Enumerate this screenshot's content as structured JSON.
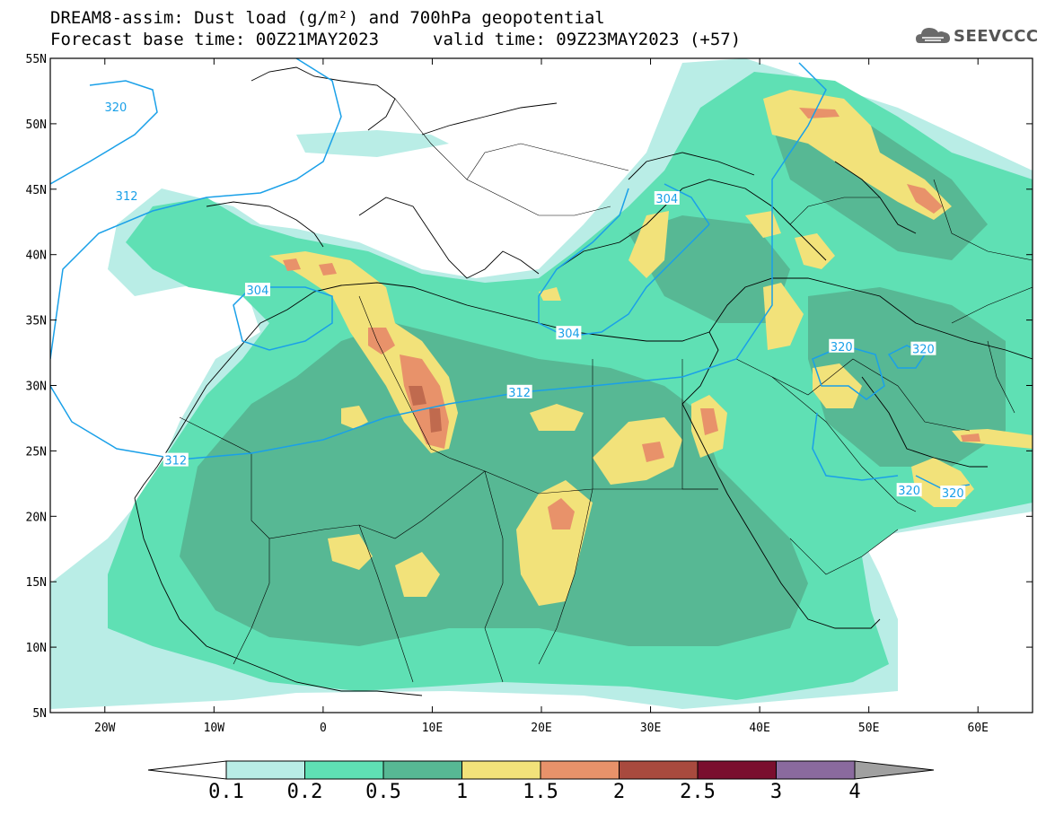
{
  "title": {
    "line1": "DREAM8-assim: Dust load (g/m²) and 700hPa geopotential",
    "line2_left": "Forecast base time: 00Z21MAY2023",
    "line2_right": "valid time: 09Z23MAY2023 (+57)"
  },
  "logo": {
    "icon": "cloud-icon",
    "text": "SEEVCCC"
  },
  "map": {
    "lon_range": [
      -25,
      65
    ],
    "lat_range": [
      5,
      55
    ],
    "lon_ticks": [
      "20W",
      "10W",
      "0",
      "10E",
      "20E",
      "30E",
      "40E",
      "50E",
      "60E"
    ],
    "lat_ticks": [
      "55N",
      "50N",
      "45N",
      "40N",
      "35N",
      "30N",
      "25N",
      "20N",
      "15N",
      "10N",
      "5N"
    ],
    "contour_labels": [
      {
        "text": "320",
        "lon": -19.0,
        "lat": 51.3
      },
      {
        "text": "312",
        "lon": -18.0,
        "lat": 44.5
      },
      {
        "text": "304",
        "lon": -6.0,
        "lat": 37.3
      },
      {
        "text": "304",
        "lon": 31.5,
        "lat": 44.3
      },
      {
        "text": "304",
        "lon": 22.5,
        "lat": 34.0
      },
      {
        "text": "312",
        "lon": 18.0,
        "lat": 29.5
      },
      {
        "text": "312",
        "lon": -13.5,
        "lat": 24.3
      },
      {
        "text": "320",
        "lon": 47.5,
        "lat": 33.0
      },
      {
        "text": "320",
        "lon": 55.0,
        "lat": 32.8
      },
      {
        "text": "320",
        "lon": 53.7,
        "lat": 22.0
      },
      {
        "text": "320",
        "lon": 57.7,
        "lat": 21.8
      }
    ]
  },
  "colorbar": {
    "labels": [
      "0.1",
      "0.2",
      "0.5",
      "1",
      "1.5",
      "2",
      "2.5",
      "3",
      "4"
    ],
    "colors": [
      "#b9ede6",
      "#5fe0b4",
      "#57b894",
      "#f2e27a",
      "#e8926a",
      "#a84a3e",
      "#7a0f2e",
      "#8a6a9e"
    ]
  }
}
